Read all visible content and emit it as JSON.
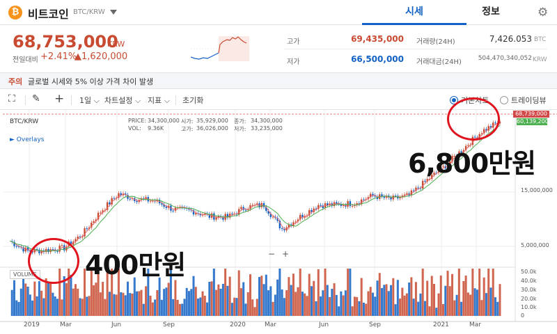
{
  "header": {
    "coin_symbol_glyph": "₿",
    "coin_name": "비트코인",
    "pair": "BTC/KRW",
    "tabs": [
      {
        "label": "시세"
      },
      {
        "label": "정보"
      }
    ],
    "settings_glyph": "⚙"
  },
  "summary": {
    "price": "68,753,000",
    "unit": "KRW",
    "change_label": "전일대비",
    "change_pct": "+2.41%",
    "change_abs": "▲1,620,000",
    "stats": {
      "high_label": "고가",
      "high_value": "69,435,000",
      "low_label": "저가",
      "low_value": "66,500,000",
      "volume_label": "거래량(24H)",
      "volume_value": "7,426.053",
      "volume_unit": "BTC",
      "amount_label": "거래대금(24H)",
      "amount_value": "504,470,340,052",
      "amount_unit": "KRW"
    }
  },
  "notice": {
    "tag": "주의",
    "text": "글로벌 시세와 5% 이상 가격 차이 발생"
  },
  "toolbar": {
    "expand_glyph": "⛶",
    "pen_glyph": "✎",
    "cross_glyph": "+",
    "interval": "1일",
    "settings": "차트설정",
    "indicators": "지표",
    "reset": "초기화",
    "radio_basic": "기본차트",
    "radio_trading": "트레이딩뷰"
  },
  "chart": {
    "pair_label": "BTC/KRW",
    "overlays_label": "► Overlays",
    "info": {
      "price_l": "PRICE:",
      "price_v": "34,300,000",
      "open_l": "시가:",
      "open_v": "35,929,000",
      "close_l": "종가:",
      "close_v": "34,300,000",
      "vol_l": "VOL:",
      "vol_v": "9.36K",
      "high_l": "고가:",
      "high_v": "36,026,000",
      "low_l": "저가:",
      "low_v": "33,235,000"
    },
    "volume_label": "VOLUME",
    "current_price_tag": "68,739,000",
    "ma_price_tag": "60,139,200",
    "price_ticks": [
      "15,000,000",
      "5,000,000"
    ],
    "volume_ticks": [
      "50.0k",
      "40.0k",
      "30.0k",
      "20.0k",
      "10.0k",
      "0"
    ],
    "x_ticks": [
      "2019",
      "Mar",
      "Jun",
      "Sep",
      "2020",
      "Mar",
      "Jun",
      "Sep",
      "2021",
      "Mar"
    ],
    "zoom_out": "−",
    "zoom_in": "+"
  },
  "annotations": {
    "high": "6,800만원",
    "low": "400만원"
  },
  "colors": {
    "up": "#c84a31",
    "down": "#1261c4",
    "accent": "#1261c4",
    "ring": "#e0141e"
  },
  "chart_data": {
    "type": "line",
    "title": "",
    "ylabel": "",
    "xlabel": "",
    "y_scale": "log",
    "x": [
      "2018-12",
      "2019-01",
      "2019-02",
      "2019-03",
      "2019-04",
      "2019-05",
      "2019-06",
      "2019-07",
      "2019-08",
      "2019-09",
      "2019-10",
      "2019-11",
      "2019-12",
      "2020-01",
      "2020-02",
      "2020-03",
      "2020-04",
      "2020-05",
      "2020-06",
      "2020-07",
      "2020-08",
      "2020-09",
      "2020-10",
      "2020-11",
      "2020-12",
      "2021-01",
      "2021-02",
      "2021-03"
    ],
    "series": [
      {
        "values": [
          5000000,
          4000000,
          4100000,
          4300000,
          5800000,
          9500000,
          14000000,
          12500000,
          12000000,
          10000000,
          9700000,
          8600000,
          8400000,
          10500000,
          11000000,
          6500000,
          8500000,
          11000000,
          11000000,
          11500000,
          13500000,
          12500000,
          13500000,
          19000000,
          26000000,
          38000000,
          55000000,
          68000000
        ]
      }
    ]
  }
}
